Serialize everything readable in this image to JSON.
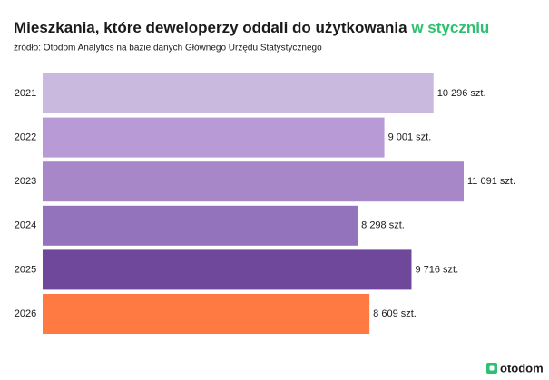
{
  "chart_data": {
    "type": "bar",
    "orientation": "horizontal",
    "title": "Mieszkania, które deweloperzy oddali do użytkowania",
    "title_highlight": "w styczniu",
    "subtitle": "źródło: Otodom Analytics na bazie danych Głównego Urzędu Statystycznego",
    "categories": [
      "2021",
      "2022",
      "2023",
      "2024",
      "2025",
      "2026"
    ],
    "values": [
      10296,
      9001,
      11091,
      8298,
      9716,
      8609
    ],
    "value_labels": [
      "10 296 szt.",
      "9 001 szt.",
      "11 091 szt.",
      "8 298 szt.",
      "9 716 szt.",
      "8 609 szt."
    ],
    "colors": [
      "#c9b9df",
      "#b89bd6",
      "#a887c8",
      "#9374bc",
      "#6f489b",
      "#ff7a43"
    ]
  },
  "logo": "otodom"
}
